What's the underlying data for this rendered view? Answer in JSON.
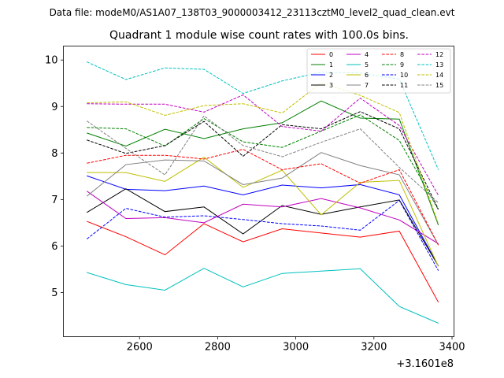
{
  "chart_data": {
    "type": "line",
    "suptitle": "Data file: modeM0/AS1A07_138T03_9000003412_23113cztM0_level2_quad_clean.evt",
    "title": "Quadrant 1 module wise count rates with 100.0s bins.",
    "xlabel": "",
    "ylabel": "",
    "x_offset_label": "+3.1601e8",
    "x": [
      2465,
      2565,
      2665,
      2765,
      2865,
      2965,
      3065,
      3165,
      3265,
      3365
    ],
    "xlim": [
      2405,
      3405
    ],
    "ylim": [
      4.05,
      10.3
    ],
    "xticks": [
      2600,
      2800,
      3000,
      3200,
      3400
    ],
    "yticks": [
      5,
      6,
      7,
      8,
      9,
      10
    ],
    "xtick_labels": [
      "2600",
      "2800",
      "3000",
      "3200",
      "3400"
    ],
    "ytick_labels": [
      "5",
      "6",
      "7",
      "8",
      "9",
      "10"
    ],
    "grid": false,
    "legend_position": "top-right",
    "legend_columns": 4,
    "series": [
      {
        "name": "0",
        "color": "#ff0000",
        "style": "solid",
        "values": [
          6.53,
          6.2,
          5.81,
          6.48,
          6.09,
          6.37,
          6.28,
          6.19,
          6.32,
          4.79
        ]
      },
      {
        "name": "1",
        "color": "#008000",
        "style": "solid",
        "values": [
          8.43,
          8.15,
          8.51,
          8.31,
          8.52,
          8.65,
          9.12,
          8.75,
          8.73,
          6.45
        ]
      },
      {
        "name": "2",
        "color": "#0000ff",
        "style": "solid",
        "values": [
          7.51,
          7.22,
          7.19,
          7.29,
          7.1,
          7.31,
          7.25,
          7.32,
          7.1,
          5.57
        ]
      },
      {
        "name": "3",
        "color": "#000000",
        "style": "solid",
        "values": [
          6.72,
          7.23,
          6.74,
          6.84,
          6.26,
          6.87,
          6.68,
          6.84,
          6.99,
          5.57
        ]
      },
      {
        "name": "4",
        "color": "#bf00bf",
        "style": "solid",
        "values": [
          7.18,
          6.59,
          6.61,
          6.5,
          6.9,
          6.84,
          7.02,
          6.82,
          6.56,
          6.05
        ]
      },
      {
        "name": "5",
        "color": "#00bfbf",
        "style": "solid",
        "values": [
          5.43,
          5.17,
          5.05,
          5.52,
          5.12,
          5.41,
          5.46,
          5.51,
          4.7,
          4.34
        ]
      },
      {
        "name": "6",
        "color": "#bfbf00",
        "style": "solid",
        "values": [
          7.58,
          7.58,
          7.39,
          7.91,
          7.26,
          7.63,
          6.67,
          7.37,
          7.41,
          5.56
        ]
      },
      {
        "name": "7",
        "color": "#808080",
        "style": "solid",
        "values": [
          7.07,
          7.75,
          7.85,
          7.83,
          7.32,
          7.46,
          8.01,
          7.73,
          7.53,
          6.02
        ]
      },
      {
        "name": "8",
        "color": "#ff0000",
        "style": "dashed",
        "values": [
          7.78,
          7.95,
          7.95,
          7.87,
          8.08,
          7.64,
          7.77,
          7.35,
          7.64,
          6.02
        ]
      },
      {
        "name": "9",
        "color": "#008000",
        "style": "dashed",
        "values": [
          8.55,
          8.52,
          8.15,
          8.74,
          8.24,
          8.12,
          8.47,
          8.82,
          8.27,
          6.78
        ]
      },
      {
        "name": "10",
        "color": "#0000ff",
        "style": "dashed",
        "values": [
          6.15,
          6.81,
          6.62,
          6.65,
          6.57,
          6.48,
          6.43,
          6.34,
          6.98,
          5.47
        ]
      },
      {
        "name": "11",
        "color": "#000000",
        "style": "dashed",
        "values": [
          8.28,
          7.99,
          8.16,
          8.68,
          7.93,
          8.61,
          8.52,
          8.89,
          8.52,
          6.79
        ]
      },
      {
        "name": "12",
        "color": "#bf00bf",
        "style": "dashed",
        "values": [
          9.06,
          9.05,
          9.05,
          8.88,
          9.25,
          8.57,
          8.47,
          9.18,
          8.59,
          7.09
        ]
      },
      {
        "name": "13",
        "color": "#00bfbf",
        "style": "dashed",
        "values": [
          9.96,
          9.58,
          9.83,
          9.8,
          9.28,
          9.55,
          9.74,
          9.72,
          9.59,
          7.64
        ]
      },
      {
        "name": "14",
        "color": "#bfbf00",
        "style": "dashed",
        "values": [
          9.08,
          9.1,
          8.81,
          9.02,
          9.06,
          8.86,
          9.51,
          9.24,
          8.87,
          6.48
        ]
      },
      {
        "name": "15",
        "color": "#808080",
        "style": "dashed",
        "values": [
          8.69,
          8.1,
          7.53,
          8.8,
          8.16,
          7.92,
          8.23,
          8.52,
          7.69,
          6.93
        ]
      }
    ]
  }
}
